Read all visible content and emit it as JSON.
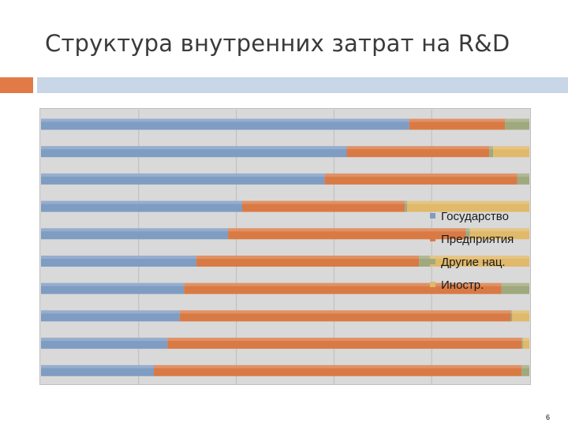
{
  "slide": {
    "title": "Структура внутренних затрат на R&D",
    "page_number": "6"
  },
  "chart_data": {
    "type": "bar",
    "orientation": "horizontal",
    "stacked": "percent",
    "grid": true,
    "legend_position": "right",
    "xlim": [
      0,
      100
    ],
    "series": [
      {
        "name": "Государство",
        "color": "#7f9cc3",
        "values": [
          75.4,
          62.6,
          58.1,
          41.2,
          38.3,
          31.8,
          29.3,
          28.4,
          25.9,
          23.1
        ]
      },
      {
        "name": "Предприятия",
        "color": "#d97a45",
        "values": [
          19.6,
          29.2,
          39.4,
          33.3,
          48.7,
          45.6,
          65.0,
          67.8,
          72.5,
          75.3
        ]
      },
      {
        "name": "Другие нац.",
        "color": "#a0a97d",
        "values": [
          5.0,
          0.8,
          2.5,
          0.5,
          0.8,
          2.3,
          5.7,
          0.3,
          0.3,
          1.6
        ]
      },
      {
        "name": "Иностр.",
        "color": "#e0b96a",
        "values": [
          0.0,
          7.4,
          0.0,
          25.0,
          12.2,
          20.3,
          0.0,
          3.5,
          1.3,
          0.0
        ]
      }
    ]
  }
}
